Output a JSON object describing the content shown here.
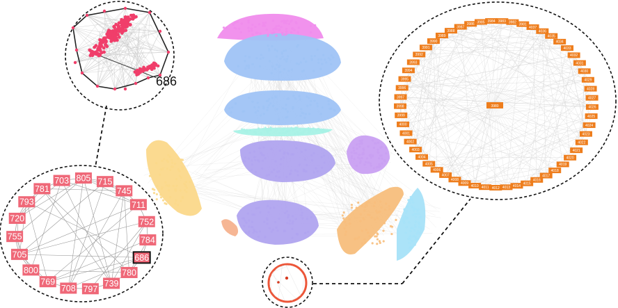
{
  "colors": {
    "pink": "#f08cec",
    "light_blue": "#9fc3f5",
    "cyan": "#a8f2e6",
    "lavender": "#b0a4ef",
    "violet": "#c9a0f2",
    "yellow": "#fbd88a",
    "orange": "#f7be7c",
    "sky": "#a6e2f8",
    "peach": "#f5b28e",
    "red": "#ec5538",
    "crimson": "#f03e6a",
    "edge": "#c8c8c8"
  },
  "top_left_inset": {
    "highlighted_node": "686"
  },
  "bottom_left_inset": {
    "nodes": [
      "703",
      "805",
      "715",
      "745",
      "711",
      "752",
      "784",
      "686",
      "780",
      "739",
      "797",
      "708",
      "769",
      "800",
      "705",
      "755",
      "720",
      "793",
      "781"
    ],
    "highlighted": "686"
  },
  "right_inset": {
    "center_node": "3980",
    "nodes": [
      "3984",
      "3985",
      "3986",
      "3987",
      "3988",
      "3989",
      "3990",
      "3991",
      "3992",
      "3993",
      "3994",
      "3995",
      "3996",
      "3997",
      "3998",
      "3999",
      "4000",
      "4001",
      "4002",
      "4003",
      "4004",
      "4005",
      "4006",
      "4007",
      "4008",
      "4009",
      "4010",
      "4011",
      "4012",
      "4013",
      "4014",
      "4015",
      "4016",
      "4017",
      "4018",
      "4019",
      "4020",
      "4021",
      "4022",
      "4023",
      "4024",
      "4025",
      "4026",
      "4027",
      "4028",
      "4029",
      "4030",
      "4031",
      "4032",
      "4033",
      "4034",
      "4035",
      "4036",
      "4037",
      "3981",
      "3982",
      "3983"
    ]
  }
}
